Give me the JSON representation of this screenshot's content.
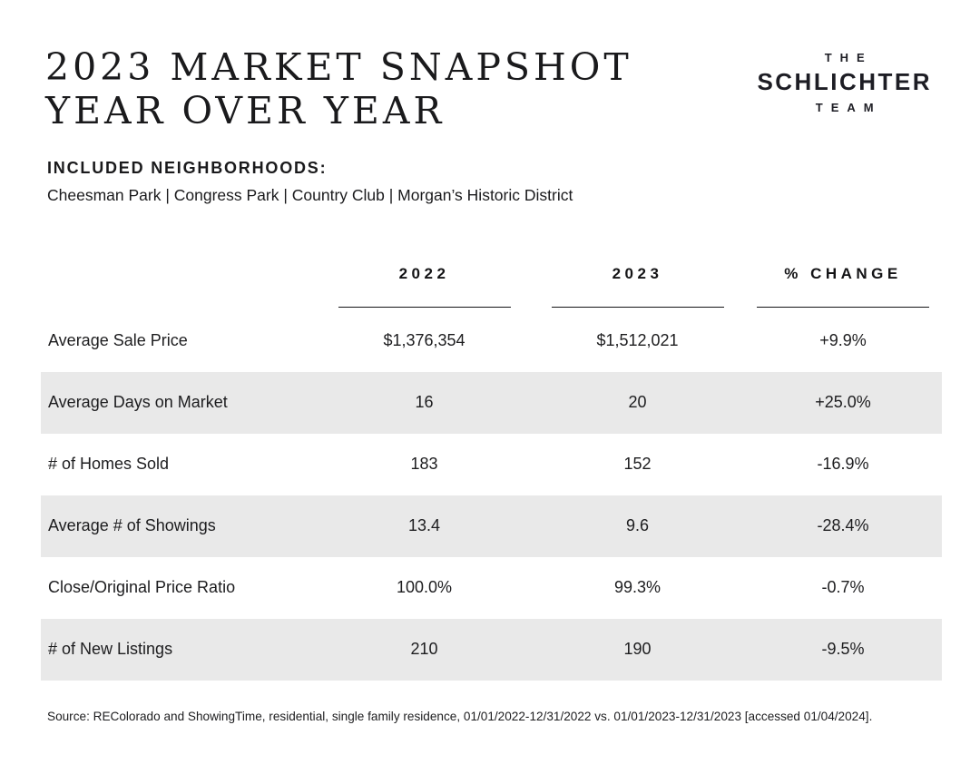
{
  "header": {
    "title_line1": "2023 MARKET SNAPSHOT",
    "title_line2": "YEAR OVER YEAR",
    "logo": {
      "line1": "THE",
      "line2": "SCHLICHTER",
      "line3": "TEAM"
    }
  },
  "neighborhoods": {
    "label": "INCLUDED NEIGHBORHOODS:",
    "list": "Cheesman Park | Congress Park | Country Club | Morgan’s Historic District"
  },
  "table": {
    "columns": [
      "2022",
      "2023",
      "% CHANGE"
    ],
    "rows": [
      {
        "label": "Average Sale Price",
        "y2022": "$1,376,354",
        "y2023": "$1,512,021",
        "change": "+9.9%"
      },
      {
        "label": "Average Days on Market",
        "y2022": "16",
        "y2023": "20",
        "change": "+25.0%"
      },
      {
        "label": "# of Homes Sold",
        "y2022": "183",
        "y2023": "152",
        "change": "-16.9%"
      },
      {
        "label": "Average # of Showings",
        "y2022": "13.4",
        "y2023": "9.6",
        "change": "-28.4%"
      },
      {
        "label": "Close/Original Price Ratio",
        "y2022": "100.0%",
        "y2023": "99.3%",
        "change": "-0.7%"
      },
      {
        "label": "# of New Listings",
        "y2022": "210",
        "y2023": "190",
        "change": "-9.5%"
      }
    ]
  },
  "footer": {
    "source": "Source: REColorado and ShowingTime, residential, single family residence, 01/01/2022-12/31/2022 vs. 01/01/2023-12/31/2023 [accessed 01/04/2024]."
  },
  "chart_data": {
    "type": "table",
    "title": "2023 Market Snapshot Year Over Year",
    "categories": [
      "Average Sale Price",
      "Average Days on Market",
      "# of Homes Sold",
      "Average # of Showings",
      "Close/Original Price Ratio",
      "# of New Listings"
    ],
    "series": [
      {
        "name": "2022",
        "values": [
          "$1,376,354",
          "16",
          "183",
          "13.4",
          "100.0%",
          "210"
        ]
      },
      {
        "name": "2023",
        "values": [
          "$1,512,021",
          "20",
          "152",
          "9.6",
          "99.3%",
          "190"
        ]
      },
      {
        "name": "% CHANGE",
        "values": [
          "+9.9%",
          "+25.0%",
          "-16.9%",
          "-28.4%",
          "-0.7%",
          "-9.5%"
        ]
      }
    ]
  },
  "colors": {
    "text": "#1d1d1f",
    "stripe": "#e9e9e9",
    "background": "#ffffff"
  }
}
